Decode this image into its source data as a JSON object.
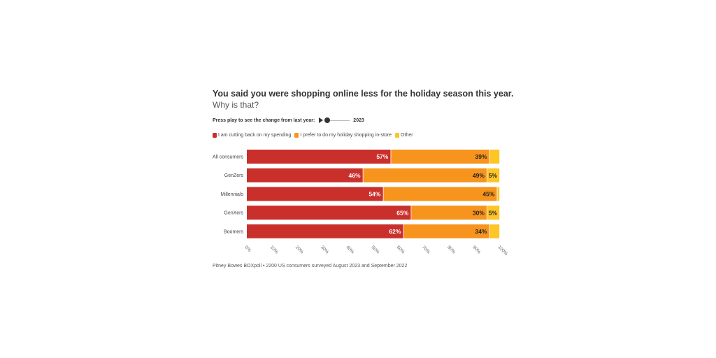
{
  "header": {
    "title": "You said you were shopping online less for the holiday season this year.",
    "subtitle": "Why is that?"
  },
  "controls": {
    "play_label": "Press play to see the change from last year:",
    "year": "2023"
  },
  "footnote": "Pitney Bowes BOXpoll • 2200 US consumers surveyed August 2023 and September 2022",
  "colors": {
    "spending": "#c9302c",
    "instore": "#f7941d",
    "other": "#fdc526"
  },
  "chart_data": {
    "type": "bar",
    "orientation": "horizontal",
    "stacked": true,
    "title": "You said you were shopping online less for the holiday season this year.",
    "subtitle": "Why is that?",
    "categories": [
      "All consumers",
      "GenZers",
      "Millennials",
      "GenXers",
      "Boomers"
    ],
    "series": [
      {
        "name": "I am cutting back on my spending",
        "values": [
          57,
          46,
          54,
          65,
          62
        ],
        "labels": [
          "57%",
          "46%",
          "54%",
          "65%",
          "62%"
        ]
      },
      {
        "name": "I prefer to do my holiday shopping in-store",
        "values": [
          39,
          49,
          45,
          30,
          34
        ],
        "labels": [
          "39%",
          "49%",
          "45%",
          "30%",
          "34%"
        ]
      },
      {
        "name": "Other",
        "values": [
          4,
          5,
          1,
          5,
          4
        ],
        "labels": [
          "",
          "5%",
          "",
          "5%",
          ""
        ]
      }
    ],
    "xticks": [
      "0%",
      "10%",
      "20%",
      "30%",
      "40%",
      "50%",
      "60%",
      "70%",
      "80%",
      "90%",
      "100%"
    ],
    "xlim": [
      0,
      100
    ],
    "xlabel": "",
    "ylabel": "",
    "legend": "top-left"
  }
}
